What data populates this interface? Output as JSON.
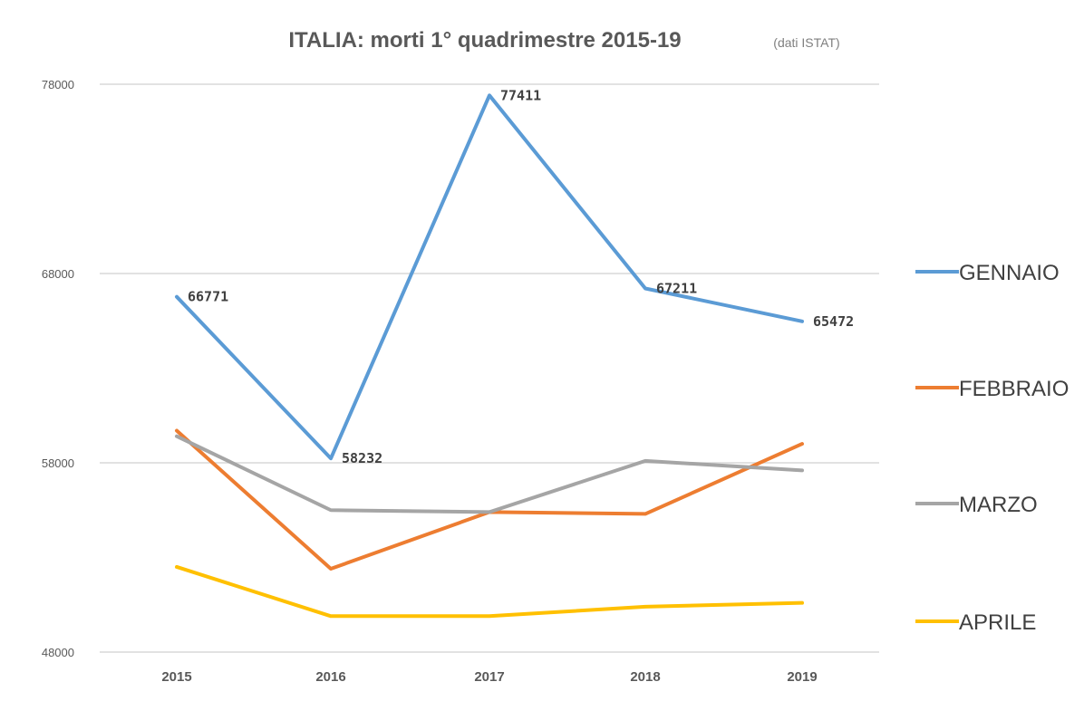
{
  "chart_data": {
    "type": "line",
    "title": "ITALIA: morti 1° quadrimestre 2015-19",
    "subtitle": "(dati ISTAT)",
    "categories": [
      "2015",
      "2016",
      "2017",
      "2018",
      "2019"
    ],
    "ylim": [
      48000,
      78000
    ],
    "yticks": [
      48000,
      58000,
      68000,
      78000
    ],
    "ytick_labels": [
      "48000",
      "58000",
      "68000",
      "78000"
    ],
    "grid": true,
    "legend_position": "right",
    "series": [
      {
        "name": "GENNAIO",
        "color": "#5b9bd5",
        "values": [
          66771,
          58232,
          77411,
          67211,
          65472
        ],
        "labels": [
          "66771",
          "58232",
          "77411",
          "67211",
          "65472"
        ]
      },
      {
        "name": "FEBBRAIO",
        "color": "#ed7d31",
        "values": [
          59700,
          52400,
          55400,
          55300,
          59000
        ]
      },
      {
        "name": "MARZO",
        "color": "#a5a5a5",
        "values": [
          59400,
          55500,
          55400,
          58100,
          57600
        ]
      },
      {
        "name": "APRILE",
        "color": "#ffc000",
        "values": [
          52500,
          49900,
          49900,
          50400,
          50600
        ]
      }
    ]
  }
}
